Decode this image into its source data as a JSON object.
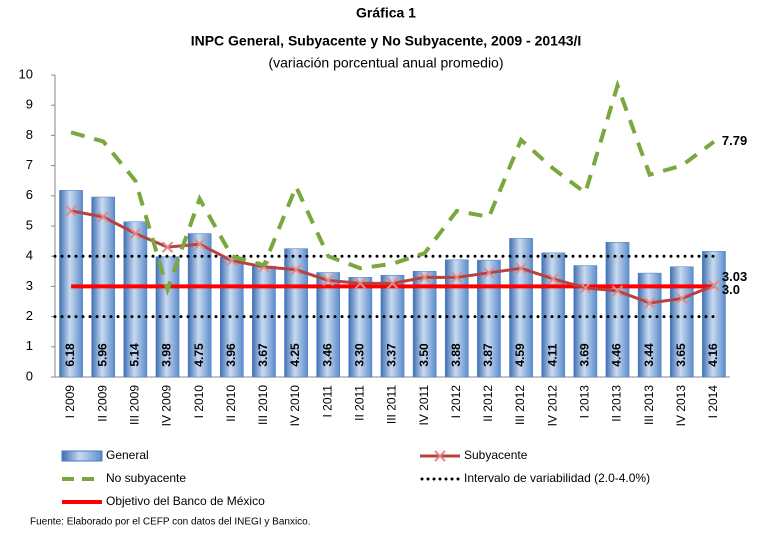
{
  "chart_data": {
    "type": "bar-line",
    "title": "Gráfica 1",
    "subtitle": "INPC General, Subyacente y No Subyacente, 2009 - 20143/I",
    "note": "(variación porcentual anual promedio)",
    "source": "Fuente: Elaborado por el CEFP con datos del INEGI y Banxico.",
    "categories": [
      "I 2009",
      "II 2009",
      "III 2009",
      "IV 2009",
      "I 2010",
      "II 2010",
      "III 2010",
      "IV 2010",
      "I 2011",
      "II 2011",
      "III 2011",
      "IV 2011",
      "I 2012",
      "II 2012",
      "III 2012",
      "IV 2012",
      "I 2013",
      "II 2013",
      "III 2013",
      "IV 2013",
      "I 2014"
    ],
    "series": [
      {
        "name": "General",
        "kind": "bar",
        "color": "#5b8ccc",
        "values": [
          6.18,
          5.96,
          5.14,
          3.98,
          4.75,
          3.96,
          3.67,
          4.25,
          3.46,
          3.3,
          3.37,
          3.5,
          3.88,
          3.87,
          4.59,
          4.11,
          3.69,
          4.46,
          3.44,
          3.65,
          4.16
        ],
        "value_labels": [
          "6.18",
          "5.96",
          "5.14",
          "3.98",
          "4.75",
          "3.96",
          "3.67",
          "4.25",
          "3.46",
          "3.30",
          "3.37",
          "3.50",
          "3.88",
          "3.87",
          "4.59",
          "4.11",
          "3.69",
          "4.46",
          "3.44",
          "3.65",
          "4.16"
        ]
      },
      {
        "name": "Subyacente",
        "kind": "line",
        "color": "#b8423f",
        "values": [
          5.5,
          5.3,
          4.75,
          4.3,
          4.4,
          3.85,
          3.65,
          3.55,
          3.2,
          3.1,
          3.1,
          3.3,
          3.3,
          3.45,
          3.6,
          3.25,
          2.95,
          2.85,
          2.45,
          2.6,
          3.03
        ]
      },
      {
        "name": "No subyacente",
        "kind": "dashed",
        "color": "#7aa83e",
        "values": [
          8.1,
          7.8,
          6.5,
          2.9,
          5.9,
          4.0,
          3.7,
          6.3,
          4.0,
          3.6,
          3.75,
          4.1,
          5.5,
          5.3,
          7.85,
          6.9,
          6.1,
          9.65,
          6.7,
          7.0,
          7.79
        ]
      }
    ],
    "interval": {
      "name": "Intervalo de variabilidad (2.0-4.0%)",
      "values": [
        2,
        4
      ],
      "color": "#000000"
    },
    "target": {
      "name": "Objetivo del Banco de México",
      "value": 3,
      "label": "3.0",
      "color": "#ff0000"
    },
    "ylim": [
      0,
      10
    ],
    "yticks": [
      0,
      1,
      2,
      3,
      4,
      5,
      6,
      7,
      8,
      9,
      10
    ]
  }
}
